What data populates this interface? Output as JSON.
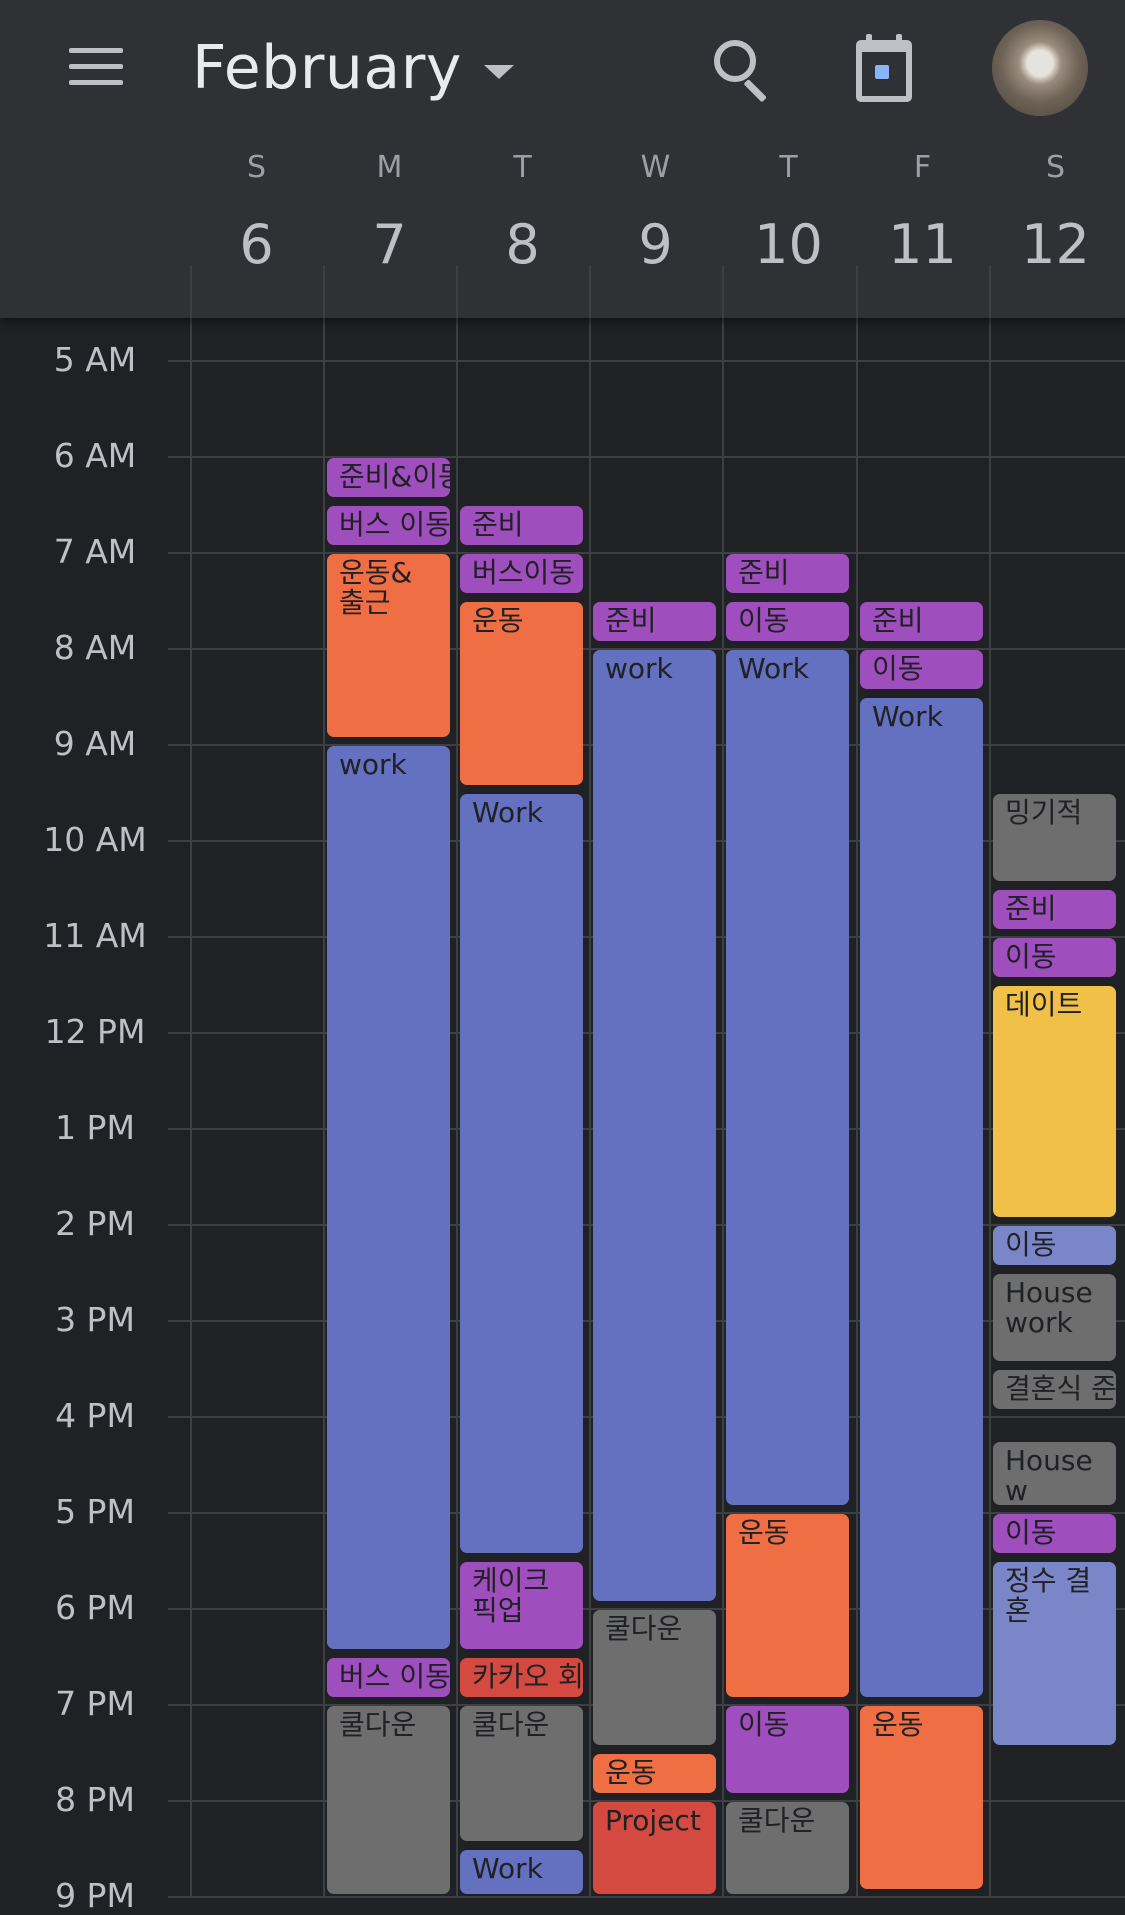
{
  "header": {
    "month": "February",
    "days": [
      {
        "letter": "S",
        "num": "6"
      },
      {
        "letter": "M",
        "num": "7"
      },
      {
        "letter": "T",
        "num": "8"
      },
      {
        "letter": "W",
        "num": "9"
      },
      {
        "letter": "T",
        "num": "10"
      },
      {
        "letter": "F",
        "num": "11"
      },
      {
        "letter": "S",
        "num": "12"
      }
    ],
    "icons": {
      "menu": "menu-icon",
      "dropdown": "chevron-down-icon",
      "search": "search-icon",
      "today": "calendar-today-icon",
      "avatar": "avatar"
    }
  },
  "time_labels": [
    "5 AM",
    "6 AM",
    "7 AM",
    "8 AM",
    "9 AM",
    "10 AM",
    "11 AM",
    "12 PM",
    "1 PM",
    "2 PM",
    "3 PM",
    "4 PM",
    "5 PM",
    "6 PM",
    "7 PM",
    "8 PM",
    "9 PM"
  ],
  "colors": {
    "purple": "#9e4ebd",
    "orange": "#f06e44",
    "blue": "#6371c0",
    "gray": "#6e6e6e",
    "red": "#d44a40",
    "yellow": "#f0c048",
    "lightblue": "#7b86c9"
  },
  "events": [
    {
      "day": 1,
      "start": 6.0,
      "end": 6.45,
      "title": "준비&이동",
      "color": "purple"
    },
    {
      "day": 1,
      "start": 6.5,
      "end": 6.95,
      "title": "버스 이동",
      "color": "purple"
    },
    {
      "day": 1,
      "start": 7.0,
      "end": 8.95,
      "title": "운동&출근",
      "color": "orange"
    },
    {
      "day": 1,
      "start": 9.0,
      "end": 18.45,
      "title": "work",
      "color": "blue"
    },
    {
      "day": 1,
      "start": 18.5,
      "end": 18.95,
      "title": "버스 이동",
      "color": "purple"
    },
    {
      "day": 1,
      "start": 19.0,
      "end": 21.0,
      "title": "쿨다운",
      "color": "gray"
    },
    {
      "day": 2,
      "start": 6.5,
      "end": 6.95,
      "title": "준비",
      "color": "purple"
    },
    {
      "day": 2,
      "start": 7.0,
      "end": 7.45,
      "title": "버스이동",
      "color": "purple"
    },
    {
      "day": 2,
      "start": 7.5,
      "end": 9.45,
      "title": "운동",
      "color": "orange"
    },
    {
      "day": 2,
      "start": 9.5,
      "end": 17.45,
      "title": "Work",
      "color": "blue"
    },
    {
      "day": 2,
      "start": 17.5,
      "end": 18.45,
      "title": "케이크 픽업",
      "color": "purple"
    },
    {
      "day": 2,
      "start": 18.5,
      "end": 18.95,
      "title": "카카오 회",
      "color": "red"
    },
    {
      "day": 2,
      "start": 19.0,
      "end": 20.45,
      "title": "쿨다운",
      "color": "gray"
    },
    {
      "day": 2,
      "start": 20.5,
      "end": 21.0,
      "title": "Work",
      "color": "blue"
    },
    {
      "day": 3,
      "start": 7.5,
      "end": 7.95,
      "title": "준비",
      "color": "purple"
    },
    {
      "day": 3,
      "start": 8.0,
      "end": 17.95,
      "title": "work",
      "color": "blue"
    },
    {
      "day": 3,
      "start": 18.0,
      "end": 19.45,
      "title": "쿨다운",
      "color": "gray"
    },
    {
      "day": 3,
      "start": 19.5,
      "end": 19.95,
      "title": "운동",
      "color": "orange"
    },
    {
      "day": 3,
      "start": 20.0,
      "end": 21.0,
      "title": "Project",
      "color": "red"
    },
    {
      "day": 4,
      "start": 7.0,
      "end": 7.45,
      "title": "준비",
      "color": "purple"
    },
    {
      "day": 4,
      "start": 7.5,
      "end": 7.95,
      "title": "이동",
      "color": "purple"
    },
    {
      "day": 4,
      "start": 8.0,
      "end": 16.95,
      "title": "Work",
      "color": "blue"
    },
    {
      "day": 4,
      "start": 17.0,
      "end": 18.95,
      "title": "운동",
      "color": "orange"
    },
    {
      "day": 4,
      "start": 19.0,
      "end": 19.95,
      "title": "이동",
      "color": "purple"
    },
    {
      "day": 4,
      "start": 20.0,
      "end": 21.0,
      "title": "쿨다운",
      "color": "gray"
    },
    {
      "day": 5,
      "start": 7.5,
      "end": 7.95,
      "title": "준비",
      "color": "purple"
    },
    {
      "day": 5,
      "start": 8.0,
      "end": 8.45,
      "title": "이동",
      "color": "purple"
    },
    {
      "day": 5,
      "start": 8.5,
      "end": 18.95,
      "title": "Work",
      "color": "blue"
    },
    {
      "day": 5,
      "start": 19.0,
      "end": 20.95,
      "title": "운동",
      "color": "orange"
    },
    {
      "day": 6,
      "start": 9.5,
      "end": 10.45,
      "title": "밍기적",
      "color": "gray"
    },
    {
      "day": 6,
      "start": 10.5,
      "end": 10.95,
      "title": "준비",
      "color": "purple"
    },
    {
      "day": 6,
      "start": 11.0,
      "end": 11.45,
      "title": "이동",
      "color": "purple"
    },
    {
      "day": 6,
      "start": 11.5,
      "end": 13.95,
      "title": "데이트",
      "color": "yellow"
    },
    {
      "day": 6,
      "start": 14.0,
      "end": 14.45,
      "title": "이동",
      "color": "lightblue"
    },
    {
      "day": 6,
      "start": 14.5,
      "end": 15.45,
      "title": "House work",
      "color": "gray"
    },
    {
      "day": 6,
      "start": 15.5,
      "end": 15.95,
      "title": "결혼식 준",
      "color": "gray"
    },
    {
      "day": 6,
      "start": 16.25,
      "end": 16.95,
      "title": "Housew",
      "color": "gray"
    },
    {
      "day": 6,
      "start": 17.0,
      "end": 17.45,
      "title": "이동",
      "color": "purple"
    },
    {
      "day": 6,
      "start": 17.5,
      "end": 19.45,
      "title": "정수 결혼",
      "color": "lightblue"
    }
  ]
}
